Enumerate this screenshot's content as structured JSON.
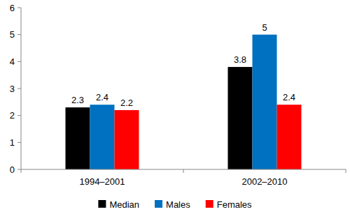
{
  "chart_data": {
    "type": "bar",
    "categories": [
      "1994–2001",
      "2002–2010"
    ],
    "series": [
      {
        "name": "Median",
        "color": "#000000",
        "values": [
          2.3,
          3.8
        ]
      },
      {
        "name": "Males",
        "color": "#0070c0",
        "values": [
          2.4,
          5
        ]
      },
      {
        "name": "Females",
        "color": "#ff0000",
        "values": [
          2.2,
          2.4
        ]
      }
    ],
    "ylim": [
      0,
      6
    ],
    "yticks": [
      0,
      1,
      2,
      3,
      4,
      5,
      6
    ],
    "grid": false,
    "legend": "bottom",
    "data_labels": true
  }
}
